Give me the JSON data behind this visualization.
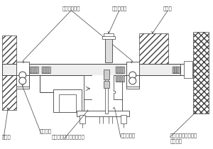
{
  "bg_color": "#ffffff",
  "lc": "#404040",
  "labels": {
    "bearing": "ベアリング゚",
    "stopper": "ストッパー",
    "hub": "ハブ゚",
    "pulley": "プーリー",
    "rotation_axis": "回転軸",
    "photo_interrupter": "フォト・インタラプァタ",
    "slit_plate": "スリット板",
    "windcup_shaft": "ウィンドカップ゚\nシャフト"
  },
  "figsize": [
    3.0,
    2.1
  ],
  "dpi": 100
}
